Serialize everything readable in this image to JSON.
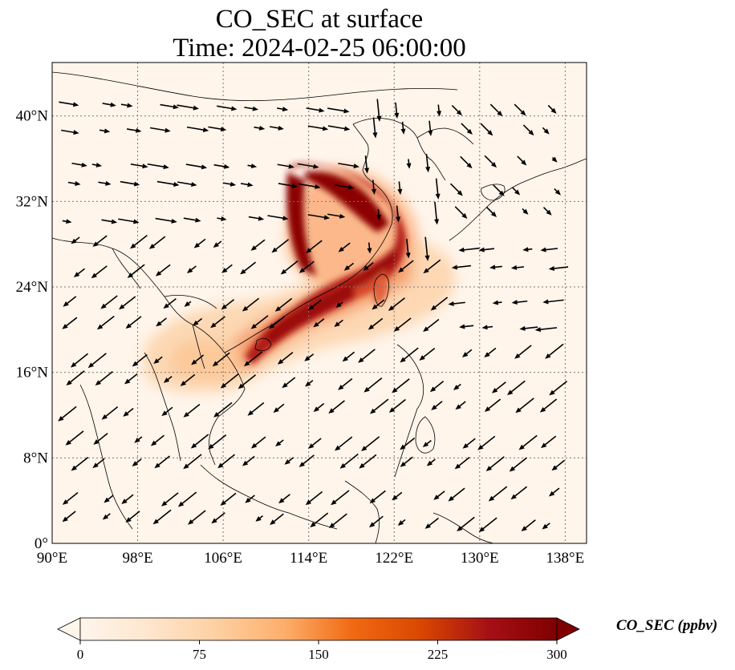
{
  "title": {
    "line1": "CO_SEC at surface",
    "line2": "Time: 2024-02-25 06:00:00"
  },
  "axes": {
    "lon_ticks": [
      90,
      98,
      106,
      114,
      122,
      130,
      138
    ],
    "lon_labels": [
      "90°E",
      "98°E",
      "106°E",
      "114°E",
      "122°E",
      "130°E",
      "138°E"
    ],
    "lat_ticks": [
      0,
      8,
      16,
      24,
      32,
      40
    ],
    "lat_labels": [
      "0°",
      "8°N",
      "16°N",
      "24°N",
      "32°N",
      "40°N"
    ],
    "lon_range": [
      90,
      140
    ],
    "lat_range": [
      0,
      45
    ],
    "gridlines": true
  },
  "colorbar": {
    "label": "CO_SEC (ppbv)",
    "min": 0,
    "max": 300,
    "ticks": [
      0,
      75,
      150,
      225,
      300
    ],
    "tick_labels": [
      "0",
      "75",
      "150",
      "225",
      "300"
    ],
    "extend": "both",
    "colors": [
      "#fff5eb",
      "#fee6ce",
      "#fdd0a2",
      "#fdae6b",
      "#f16913",
      "#d94801",
      "#a50f15",
      "#7f0000"
    ]
  },
  "colors": {
    "background": "#fff5eb",
    "coast": "#000000",
    "arrow": "#000000"
  }
}
